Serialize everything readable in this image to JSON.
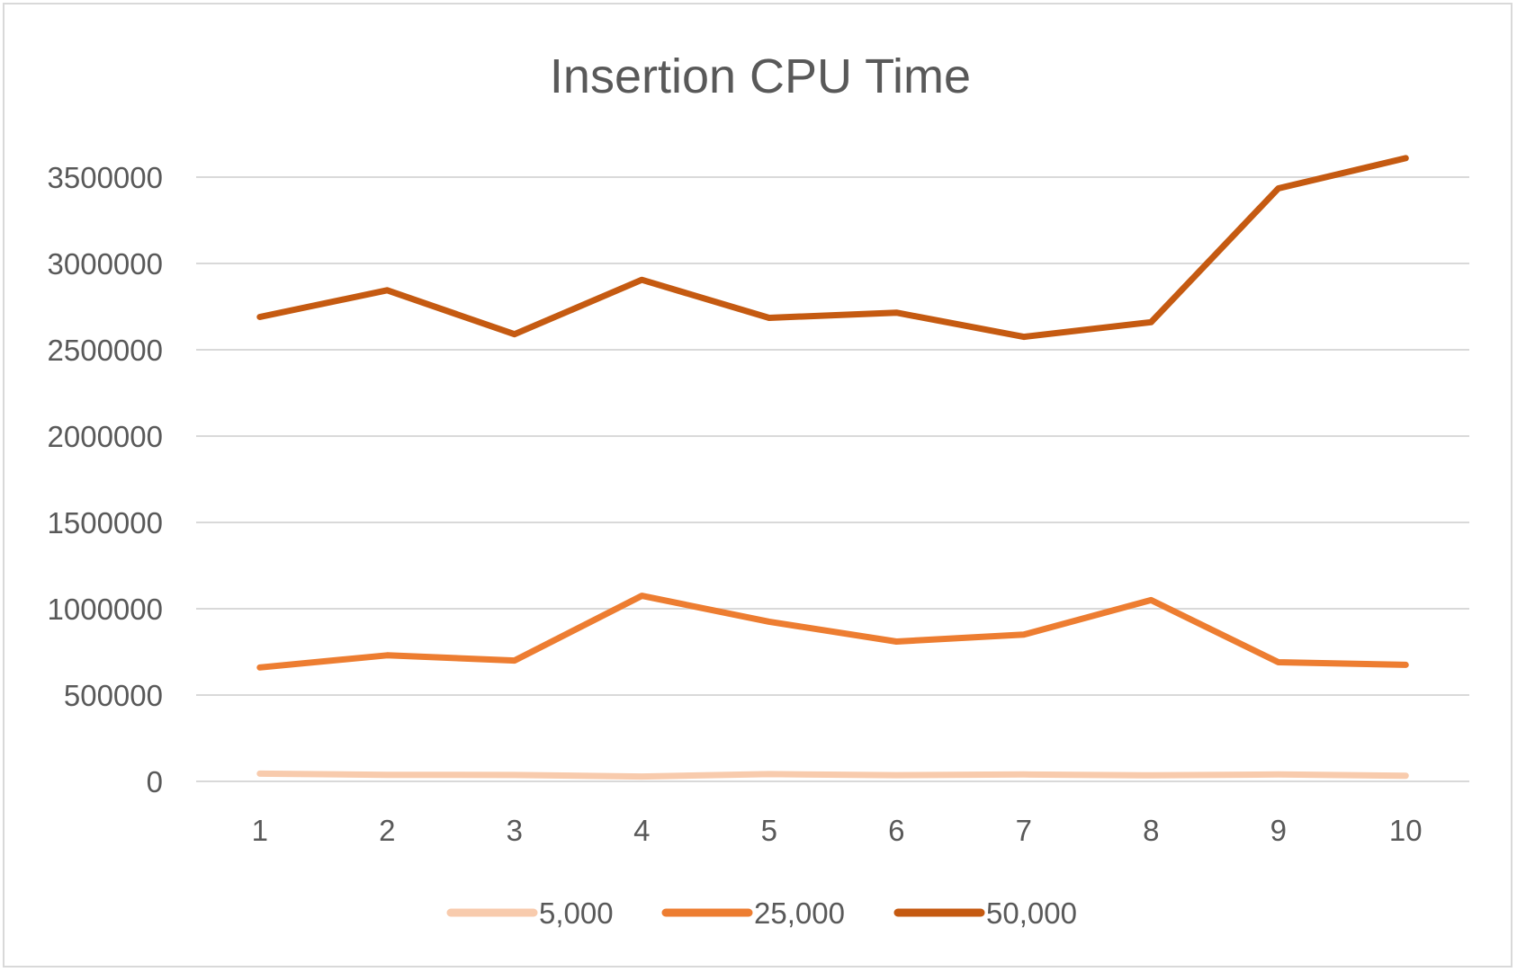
{
  "chart_data": {
    "type": "line",
    "title": "Insertion CPU Time",
    "xlabel": "",
    "ylabel": "",
    "categories": [
      "1",
      "2",
      "3",
      "4",
      "5",
      "6",
      "7",
      "8",
      "9",
      "10"
    ],
    "ylim": [
      0,
      3500000
    ],
    "yticks": [
      0,
      500000,
      1000000,
      1500000,
      2000000,
      2500000,
      3000000,
      3500000
    ],
    "ytick_labels": [
      "0",
      "500000",
      "1000000",
      "1500000",
      "2000000",
      "2500000",
      "3000000",
      "3500000"
    ],
    "grid": true,
    "legend_position": "bottom",
    "series": [
      {
        "name": "5,000",
        "color": "#f8cbad",
        "values": [
          45000,
          38000,
          37000,
          28000,
          42000,
          36000,
          40000,
          35000,
          40000,
          33000
        ]
      },
      {
        "name": "25,000",
        "color": "#ed7d31",
        "values": [
          660000,
          730000,
          700000,
          1075000,
          925000,
          810000,
          850000,
          1050000,
          690000,
          675000
        ]
      },
      {
        "name": "50,000",
        "color": "#c55a11",
        "values": [
          2690000,
          2845000,
          2590000,
          2905000,
          2685000,
          2715000,
          2575000,
          2660000,
          3435000,
          3610000
        ]
      }
    ]
  }
}
